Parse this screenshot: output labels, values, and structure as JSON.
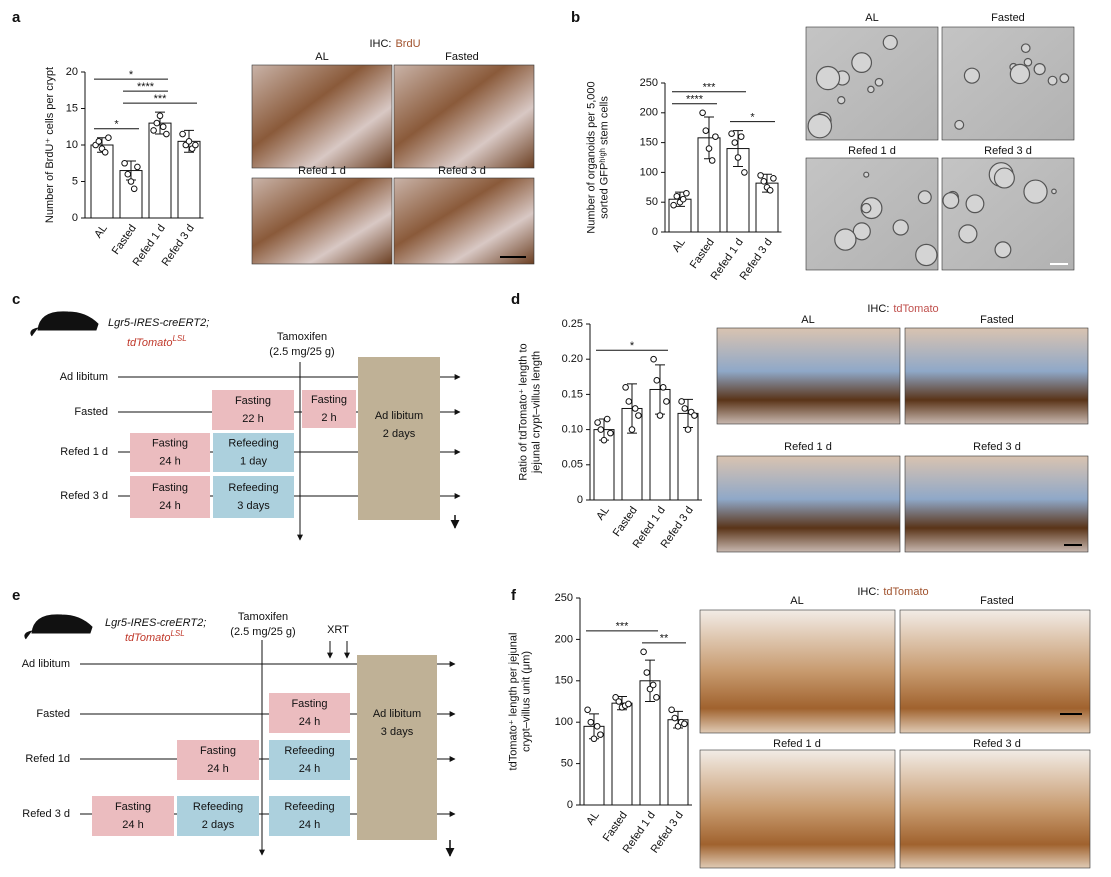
{
  "panel_labels": [
    "a",
    "b",
    "c",
    "d",
    "e",
    "f"
  ],
  "chart_data": [
    {
      "type": "bar",
      "ylabel": [
        "Number of BrdU⁺ cells per crypt"
      ],
      "categories": [
        "AL",
        "Fasted",
        "Refed 1 d",
        "Refed 3 d"
      ],
      "values": [
        10,
        6.5,
        13,
        10.5
      ],
      "errors": [
        1,
        1.3,
        1.5,
        1.5
      ],
      "points": [
        [
          10,
          10.5,
          9.5,
          9,
          11
        ],
        [
          7.5,
          6,
          5,
          4,
          7
        ],
        [
          12,
          13,
          14,
          12.5,
          11.5
        ],
        [
          11.5,
          10,
          10.5,
          9.5,
          10
        ]
      ],
      "color": "#ffffff",
      "ylim": [
        0,
        20
      ],
      "yticks": [
        0,
        5,
        10,
        15,
        20
      ],
      "significance": [
        {
          "pair": [
            0,
            1
          ],
          "label": "*"
        },
        {
          "pair": [
            1,
            3
          ],
          "label": "***"
        },
        {
          "pair": [
            1,
            2
          ],
          "label": "****"
        },
        {
          "pair": [
            0,
            2
          ],
          "label": "*"
        }
      ]
    },
    {
      "type": "bar",
      "ylabel": [
        "Number of organoids per 5,000",
        "sorted GFPʰⁱᵍʰ stem cells"
      ],
      "categories": [
        "AL",
        "Fasted",
        "Refed 1 d",
        "Refed 3 d"
      ],
      "values": [
        55,
        158,
        140,
        82
      ],
      "errors": [
        12,
        35,
        30,
        15
      ],
      "points": [
        [
          45,
          60,
          50,
          55,
          65
        ],
        [
          200,
          170,
          140,
          120,
          160
        ],
        [
          165,
          150,
          125,
          160,
          100
        ],
        [
          95,
          85,
          75,
          70,
          90
        ]
      ],
      "color": "#ffffff",
      "ylim": [
        0,
        250
      ],
      "yticks": [
        0,
        50,
        100,
        150,
        200,
        250
      ],
      "significance": [
        {
          "pair": [
            2,
            3
          ],
          "label": "*"
        },
        {
          "pair": [
            0,
            1
          ],
          "label": "****"
        },
        {
          "pair": [
            0,
            2
          ],
          "label": "***"
        }
      ]
    },
    {
      "type": "bar",
      "ylabel": [
        "Ratio of tdTomato⁺ length to",
        "jejunal crypt–villus length"
      ],
      "categories": [
        "AL",
        "Fasted",
        "Refed 1 d",
        "Refed 3 d"
      ],
      "values": [
        0.1,
        0.13,
        0.157,
        0.123
      ],
      "errors": [
        0.015,
        0.035,
        0.035,
        0.02
      ],
      "points": [
        [
          0.11,
          0.1,
          0.085,
          0.115,
          0.095
        ],
        [
          0.16,
          0.14,
          0.1,
          0.13,
          0.12
        ],
        [
          0.2,
          0.17,
          0.12,
          0.16,
          0.14
        ],
        [
          0.14,
          0.13,
          0.1,
          0.125,
          0.12
        ]
      ],
      "color": "#ffffff",
      "ylim": [
        0,
        0.25
      ],
      "yticks": [
        0,
        0.05,
        {
          "value": 0.1,
          "label": "0.10"
        },
        0.15,
        {
          "value": 0.2,
          "label": "0.20"
        },
        0.25
      ],
      "significance": [
        {
          "pair": [
            0,
            2
          ],
          "label": "*"
        }
      ]
    },
    {
      "type": "bar",
      "ylabel": [
        "tdTomato⁺ length per jejunal",
        "crypt–villus unit (μm)"
      ],
      "categories": [
        "AL",
        "Fasted",
        "Refed 1 d",
        "Refed 3 d"
      ],
      "values": [
        95,
        123,
        150,
        103
      ],
      "errors": [
        15,
        8,
        25,
        10
      ],
      "points": [
        [
          115,
          100,
          80,
          95,
          85
        ],
        [
          130,
          125,
          118,
          120,
          122
        ],
        [
          185,
          160,
          140,
          145,
          130
        ],
        [
          115,
          105,
          95,
          100,
          98
        ]
      ],
      "color": "#ffffff",
      "ylim": [
        0,
        250
      ],
      "yticks": [
        0,
        50,
        100,
        150,
        200,
        250
      ],
      "significance": [
        {
          "pair": [
            2,
            3
          ],
          "label": "**"
        },
        {
          "pair": [
            0,
            2
          ],
          "label": "***"
        }
      ]
    }
  ],
  "micrographs": {
    "a": {
      "title": [
        "IHC:",
        "BrdU"
      ],
      "labels": [
        "AL",
        "Fasted",
        "Refed 1 d",
        "Refed 3 d"
      ]
    },
    "b": {
      "labels": [
        "AL",
        "Fasted",
        "Refed 1 d",
        "Refed 3 d"
      ]
    },
    "d": {
      "title": [
        "IHC:",
        "tdTomato"
      ],
      "labels": [
        "AL",
        "Fasted",
        "Refed 1 d",
        "Refed 3 d"
      ]
    },
    "f": {
      "title": [
        "IHC:",
        "tdTomato"
      ],
      "labels": [
        "AL",
        "Fasted",
        "Refed 1 d",
        "Refed 3 d"
      ]
    }
  },
  "diagram_c": {
    "strain": [
      "Lgr5-IRES-creERT2;",
      "tdTomato",
      "LSL"
    ],
    "treatment": [
      "Tamoxifen",
      "(2.5 mg/25 g)"
    ],
    "rows": [
      "Ad libitum",
      "Fasted",
      "Refed 1 d",
      "Refed 3 d"
    ],
    "boxes": [
      [
        "Fasting",
        "22 h"
      ],
      [
        "Fasting",
        "2 h"
      ],
      [
        "Fasting",
        "24 h"
      ],
      [
        "Refeeding",
        "1 day"
      ],
      [
        "Fasting",
        "24 h"
      ],
      [
        "Refeeding",
        "3 days"
      ],
      [
        "Ad libitum",
        "2 days"
      ]
    ]
  },
  "diagram_e": {
    "strain": [
      "Lgr5-IRES-creERT2;",
      "tdTomato",
      "LSL"
    ],
    "treatment": [
      "Tamoxifen",
      "(2.5 mg/25 g)"
    ],
    "xrt": "XRT",
    "rows": [
      "Ad libitum",
      "Fasted",
      "Refed 1d",
      "Refed 3 d"
    ],
    "boxes": [
      [
        "Fasting",
        "24 h"
      ],
      [
        "Fasting",
        "24 h"
      ],
      [
        "Refeeding",
        "24 h"
      ],
      [
        "Fasting",
        "24 h"
      ],
      [
        "Refeeding",
        "2 days"
      ],
      [
        "Refeeding",
        "24 h"
      ],
      [
        "Ad libitum",
        "3 days"
      ]
    ]
  }
}
